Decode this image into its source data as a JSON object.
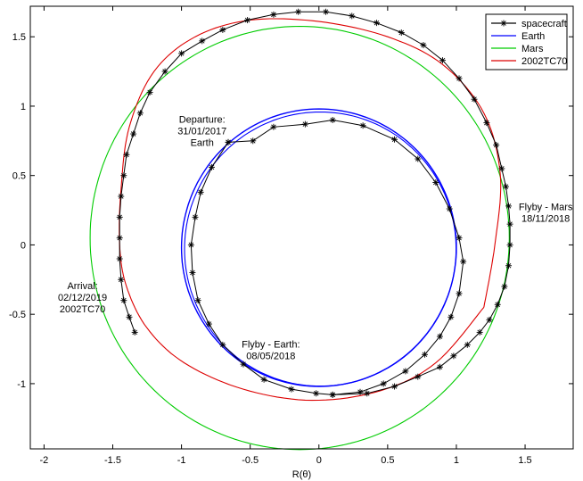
{
  "chart_data": {
    "type": "line",
    "title": "",
    "xlabel": "R(θ)",
    "ylabel": "",
    "xlim": [
      -2.1,
      1.85
    ],
    "ylim": [
      -1.47,
      1.72
    ],
    "xticks": [
      "-2",
      "-1.5",
      "-1",
      "-0.5",
      "0",
      "0.5",
      "1",
      "1.5"
    ],
    "xtick_values": [
      -2,
      -1.5,
      -1,
      -0.5,
      0,
      0.5,
      1,
      1.5
    ],
    "yticks": [
      "-1",
      "-0.5",
      "0",
      "0.5",
      "1",
      "1.5"
    ],
    "ytick_values": [
      -1,
      -0.5,
      0,
      0.5,
      1,
      1.5
    ],
    "grid": false,
    "legend_position": "top-right",
    "series": [
      {
        "name": "spacecraft",
        "color": "#000000",
        "marker": "asterisk"
      },
      {
        "name": "Earth",
        "color": "#0000ff",
        "center": [
          0,
          -0.02
        ],
        "radius": 1.0
      },
      {
        "name": "Mars",
        "color": "#00cc00",
        "center": [
          -0.14,
          0.05
        ],
        "radius": 1.525
      },
      {
        "name": "2002TC70",
        "color": "#dd0000"
      }
    ],
    "annotations": [
      {
        "lines": [
          "Departure:",
          "31/01/2017",
          "Earth"
        ],
        "at": [
          -0.85,
          0.88
        ]
      },
      {
        "lines": [
          "Flyby - Mars",
          "18/11/2018"
        ],
        "at": [
          1.65,
          0.25
        ]
      },
      {
        "lines": [
          "Flyby - Earth:",
          "08/05/2018"
        ],
        "at": [
          -0.35,
          -0.74
        ]
      },
      {
        "lines": [
          "Arrival:",
          "02/12/2019",
          "2002TC70"
        ],
        "at": [
          -1.72,
          -0.32
        ]
      }
    ]
  }
}
